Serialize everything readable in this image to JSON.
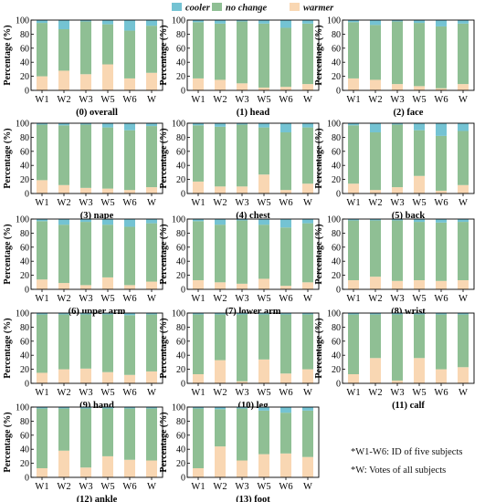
{
  "colors": {
    "cooler": "#74c3d3",
    "no_change": "#8fbf94",
    "warmer": "#f9d7b3"
  },
  "legend": [
    {
      "key": "cooler",
      "label": "cooler"
    },
    {
      "key": "no_change",
      "label": "no change"
    },
    {
      "key": "warmer",
      "label": "warmer"
    }
  ],
  "notes": [
    "*W1-W6: ID of five subjects",
    "*W: Votes of  all subjects"
  ],
  "chart_data": [
    {
      "type": "bar",
      "stacked": true,
      "title": "(0) overall",
      "ylabel": "Percentage (%)",
      "ylim": [
        0,
        100
      ],
      "yticks": [
        0,
        20,
        40,
        60,
        80,
        100
      ],
      "categories": [
        "W1",
        "W2",
        "W3",
        "W5",
        "W6",
        "W"
      ],
      "series": [
        {
          "name": "warmer",
          "values": [
            20,
            28,
            23,
            37,
            17,
            25
          ]
        },
        {
          "name": "no change",
          "values": [
            76,
            59,
            75,
            57,
            68,
            67
          ]
        },
        {
          "name": "cooler",
          "values": [
            4,
            13,
            2,
            6,
            15,
            8
          ]
        }
      ]
    },
    {
      "type": "bar",
      "stacked": true,
      "title": "(1) head",
      "ylabel": "Percentage (%)",
      "ylim": [
        0,
        100
      ],
      "yticks": [
        0,
        20,
        40,
        60,
        80,
        100
      ],
      "categories": [
        "W1",
        "W2",
        "W3",
        "W5",
        "W6",
        "W"
      ],
      "series": [
        {
          "name": "warmer",
          "values": [
            17,
            15,
            10,
            4,
            5,
            9
          ]
        },
        {
          "name": "no change",
          "values": [
            80,
            80,
            88,
            91,
            84,
            86
          ]
        },
        {
          "name": "cooler",
          "values": [
            3,
            5,
            2,
            5,
            11,
            5
          ]
        }
      ]
    },
    {
      "type": "bar",
      "stacked": true,
      "title": "(2) face",
      "ylabel": "Percentage (%)",
      "ylim": [
        0,
        100
      ],
      "yticks": [
        0,
        20,
        40,
        60,
        80,
        100
      ],
      "categories": [
        "W1",
        "W2",
        "W3",
        "W5",
        "W6",
        "W"
      ],
      "series": [
        {
          "name": "warmer",
          "values": [
            17,
            15,
            9,
            6,
            3,
            9
          ]
        },
        {
          "name": "no change",
          "values": [
            80,
            78,
            89,
            90,
            88,
            86
          ]
        },
        {
          "name": "cooler",
          "values": [
            3,
            7,
            2,
            4,
            9,
            5
          ]
        }
      ]
    },
    {
      "type": "bar",
      "stacked": true,
      "title": "(3) nape",
      "ylabel": "Percentage (%)",
      "ylim": [
        0,
        100
      ],
      "yticks": [
        0,
        20,
        40,
        60,
        80,
        100
      ],
      "categories": [
        "W1",
        "W2",
        "W3",
        "W5",
        "W6",
        "W"
      ],
      "series": [
        {
          "name": "warmer",
          "values": [
            19,
            12,
            8,
            7,
            5,
            9
          ]
        },
        {
          "name": "no change",
          "values": [
            79,
            85,
            90,
            87,
            85,
            87
          ]
        },
        {
          "name": "cooler",
          "values": [
            2,
            3,
            2,
            6,
            10,
            4
          ]
        }
      ]
    },
    {
      "type": "bar",
      "stacked": true,
      "title": "(4) chest",
      "ylabel": "Percentage (%)",
      "ylim": [
        0,
        100
      ],
      "yticks": [
        0,
        20,
        40,
        60,
        80,
        100
      ],
      "categories": [
        "W1",
        "W2",
        "W3",
        "W5",
        "W6",
        "W"
      ],
      "series": [
        {
          "name": "warmer",
          "values": [
            17,
            10,
            10,
            27,
            5,
            14
          ]
        },
        {
          "name": "no change",
          "values": [
            80,
            85,
            88,
            67,
            82,
            80
          ]
        },
        {
          "name": "cooler",
          "values": [
            3,
            5,
            2,
            6,
            13,
            6
          ]
        }
      ]
    },
    {
      "type": "bar",
      "stacked": true,
      "title": "(5) back",
      "ylabel": "Percentage (%)",
      "ylim": [
        0,
        100
      ],
      "yticks": [
        0,
        20,
        40,
        60,
        80,
        100
      ],
      "categories": [
        "W1",
        "W2",
        "W3",
        "W5",
        "W6",
        "W"
      ],
      "series": [
        {
          "name": "warmer",
          "values": [
            14,
            5,
            9,
            25,
            4,
            12
          ]
        },
        {
          "name": "no change",
          "values": [
            83,
            82,
            89,
            65,
            78,
            77
          ]
        },
        {
          "name": "cooler",
          "values": [
            3,
            13,
            2,
            10,
            18,
            11
          ]
        }
      ]
    },
    {
      "type": "bar",
      "stacked": true,
      "title": "(6) upper arm",
      "ylabel": "Percentage (%)",
      "ylim": [
        0,
        100
      ],
      "yticks": [
        0,
        20,
        40,
        60,
        80,
        100
      ],
      "categories": [
        "W1",
        "W2",
        "W3",
        "W5",
        "W6",
        "W"
      ],
      "series": [
        {
          "name": "warmer",
          "values": [
            14,
            9,
            6,
            17,
            6,
            11
          ]
        },
        {
          "name": "no change",
          "values": [
            83,
            83,
            90,
            75,
            83,
            83
          ]
        },
        {
          "name": "cooler",
          "values": [
            3,
            8,
            4,
            8,
            11,
            6
          ]
        }
      ]
    },
    {
      "type": "bar",
      "stacked": true,
      "title": "(7) lower arm",
      "ylabel": "Percentage (%)",
      "ylim": [
        0,
        100
      ],
      "yticks": [
        0,
        20,
        40,
        60,
        80,
        100
      ],
      "categories": [
        "W1",
        "W2",
        "W3",
        "W5",
        "W6",
        "W"
      ],
      "series": [
        {
          "name": "warmer",
          "values": [
            13,
            10,
            8,
            15,
            5,
            10
          ]
        },
        {
          "name": "no change",
          "values": [
            84,
            82,
            90,
            77,
            83,
            84
          ]
        },
        {
          "name": "cooler",
          "values": [
            3,
            8,
            2,
            8,
            12,
            6
          ]
        }
      ]
    },
    {
      "type": "bar",
      "stacked": true,
      "title": "(8) wrist",
      "ylabel": "Percentage (%)",
      "ylim": [
        0,
        100
      ],
      "yticks": [
        0,
        20,
        40,
        60,
        80,
        100
      ],
      "categories": [
        "W1",
        "W2",
        "W3",
        "W5",
        "W6",
        "W"
      ],
      "series": [
        {
          "name": "warmer",
          "values": [
            13,
            18,
            12,
            13,
            12,
            13
          ]
        },
        {
          "name": "no change",
          "values": [
            85,
            80,
            86,
            83,
            83,
            83
          ]
        },
        {
          "name": "cooler",
          "values": [
            2,
            2,
            2,
            4,
            5,
            4
          ]
        }
      ]
    },
    {
      "type": "bar",
      "stacked": true,
      "title": "(9) hand",
      "ylabel": "Percentage (%)",
      "ylim": [
        0,
        100
      ],
      "yticks": [
        0,
        20,
        40,
        60,
        80,
        100
      ],
      "categories": [
        "W1",
        "W2",
        "W3",
        "W5",
        "W6",
        "W"
      ],
      "series": [
        {
          "name": "warmer",
          "values": [
            15,
            20,
            21,
            16,
            12,
            17
          ]
        },
        {
          "name": "no change",
          "values": [
            83,
            78,
            77,
            82,
            85,
            81
          ]
        },
        {
          "name": "cooler",
          "values": [
            2,
            2,
            2,
            2,
            3,
            2
          ]
        }
      ]
    },
    {
      "type": "bar",
      "stacked": true,
      "title": "(10) leg",
      "ylabel": "Percentage (%)",
      "ylim": [
        0,
        100
      ],
      "yticks": [
        0,
        20,
        40,
        60,
        80,
        100
      ],
      "categories": [
        "W1",
        "W2",
        "W3",
        "W5",
        "W6",
        "W"
      ],
      "series": [
        {
          "name": "warmer",
          "values": [
            13,
            33,
            3,
            34,
            14,
            20
          ]
        },
        {
          "name": "no change",
          "values": [
            85,
            65,
            95,
            64,
            84,
            78
          ]
        },
        {
          "name": "cooler",
          "values": [
            2,
            2,
            2,
            2,
            2,
            2
          ]
        }
      ]
    },
    {
      "type": "bar",
      "stacked": true,
      "title": "(11) calf",
      "ylabel": "Percentage (%)",
      "ylim": [
        0,
        100
      ],
      "yticks": [
        0,
        20,
        40,
        60,
        80,
        100
      ],
      "categories": [
        "W1",
        "W2",
        "W3",
        "W5",
        "W6",
        "W"
      ],
      "series": [
        {
          "name": "warmer",
          "values": [
            13,
            36,
            4,
            36,
            20,
            23
          ]
        },
        {
          "name": "no change",
          "values": [
            85,
            62,
            94,
            62,
            78,
            75
          ]
        },
        {
          "name": "cooler",
          "values": [
            2,
            2,
            2,
            2,
            2,
            2
          ]
        }
      ]
    },
    {
      "type": "bar",
      "stacked": true,
      "title": "(12) ankle",
      "ylabel": "Percentage (%)",
      "ylim": [
        0,
        100
      ],
      "yticks": [
        0,
        20,
        40,
        60,
        80,
        100
      ],
      "categories": [
        "W1",
        "W2",
        "W3",
        "W5",
        "W6",
        "W"
      ],
      "series": [
        {
          "name": "warmer",
          "values": [
            13,
            38,
            14,
            30,
            25,
            24
          ]
        },
        {
          "name": "no change",
          "values": [
            85,
            60,
            84,
            68,
            73,
            74
          ]
        },
        {
          "name": "cooler",
          "values": [
            2,
            2,
            2,
            2,
            2,
            2
          ]
        }
      ]
    },
    {
      "type": "bar",
      "stacked": true,
      "title": "(13) foot",
      "ylabel": "Percentage (%)",
      "ylim": [
        0,
        100
      ],
      "yticks": [
        0,
        20,
        40,
        60,
        80,
        100
      ],
      "categories": [
        "W1",
        "W2",
        "W3",
        "W5",
        "W6",
        "W"
      ],
      "series": [
        {
          "name": "warmer",
          "values": [
            13,
            44,
            24,
            33,
            34,
            29
          ]
        },
        {
          "name": "no change",
          "values": [
            85,
            53,
            74,
            62,
            58,
            66
          ]
        },
        {
          "name": "cooler",
          "values": [
            2,
            3,
            2,
            5,
            8,
            5
          ]
        }
      ]
    }
  ]
}
